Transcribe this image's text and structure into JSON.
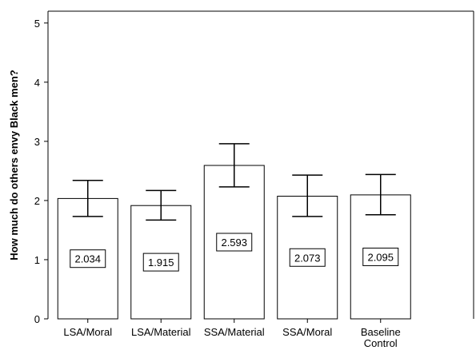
{
  "chart_data": {
    "type": "bar",
    "categories": [
      "LSA/Moral",
      "LSA/Material",
      "SSA/Material",
      "SSA/Moral",
      "Baseline Control"
    ],
    "category_lines": [
      [
        "LSA/Moral"
      ],
      [
        "LSA/Material"
      ],
      [
        "SSA/Material"
      ],
      [
        "SSA/Moral"
      ],
      [
        "Baseline",
        "Control"
      ]
    ],
    "values": [
      2.034,
      1.915,
      2.593,
      2.073,
      2.095
    ],
    "value_labels": [
      "2.034",
      "1.915",
      "2.593",
      "2.073",
      "2.095"
    ],
    "error_lower": [
      1.73,
      1.67,
      2.23,
      1.73,
      1.76
    ],
    "error_upper": [
      2.34,
      2.17,
      2.96,
      2.43,
      2.44
    ],
    "title": "",
    "xlabel": "",
    "ylabel": "How much do others envy Black men?",
    "ylim": [
      0,
      5.2
    ],
    "yticks": [
      0,
      1,
      2,
      3,
      4,
      5
    ],
    "grid": false,
    "bar_fill": "#ffffff",
    "bar_stroke": "#000000"
  }
}
